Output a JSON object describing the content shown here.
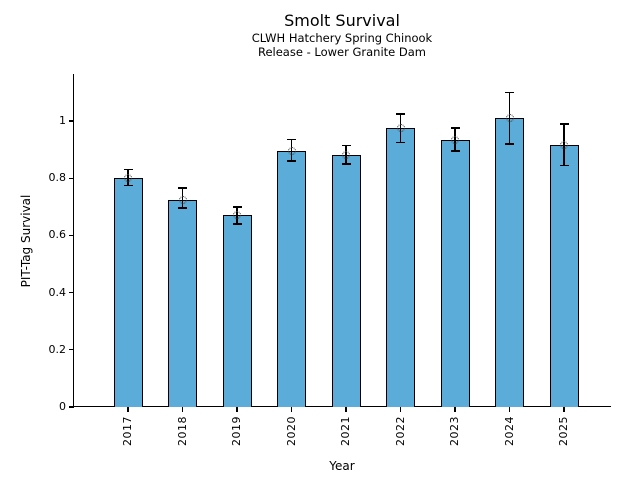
{
  "figure": {
    "title": "Smolt Survival",
    "subtitle_line1": "CLWH Hatchery Spring Chinook",
    "subtitle_line2": "Release - Lower Granite Dam",
    "xlabel": "Year",
    "ylabel": "PIT-Tag Survival"
  },
  "chart_data": {
    "type": "bar",
    "title": "Smolt Survival",
    "subtitle": "CLWH Hatchery Spring Chinook / Release - Lower Granite Dam",
    "xlabel": "Year",
    "ylabel": "PIT-Tag Survival",
    "categories": [
      "2017",
      "2018",
      "2019",
      "2020",
      "2021",
      "2022",
      "2023",
      "2024",
      "2025"
    ],
    "values": [
      0.8,
      0.725,
      0.67,
      0.895,
      0.88,
      0.975,
      0.935,
      1.01,
      0.915
    ],
    "error_upper": [
      0.83,
      0.765,
      0.7,
      0.935,
      0.915,
      1.025,
      0.975,
      1.1,
      0.99
    ],
    "error_lower": [
      0.775,
      0.695,
      0.64,
      0.86,
      0.85,
      0.925,
      0.895,
      0.92,
      0.845
    ],
    "yticks": [
      0,
      0.2,
      0.4,
      0.6,
      0.8,
      1
    ],
    "ytick_labels": [
      "0",
      "0.2",
      "0.4",
      "0.6",
      "0.8",
      "1"
    ],
    "ylim": [
      0,
      1.165
    ],
    "grid": false,
    "legend": "none",
    "bar_color": "#5BACD8",
    "bar_edge_color": "#000000",
    "error_bar_color": "#000000",
    "marker": "open-circle",
    "marker_edge_color": "#3a3a3a"
  }
}
